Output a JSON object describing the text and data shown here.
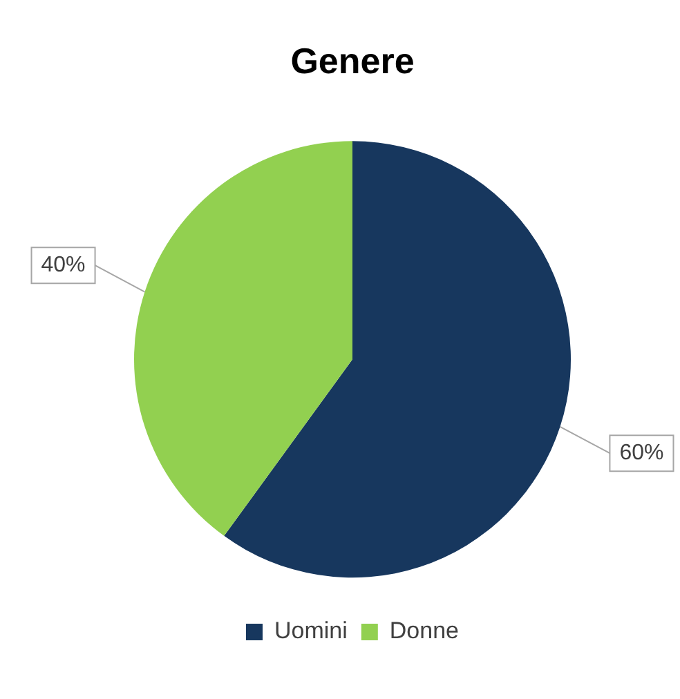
{
  "chart_data": {
    "type": "pie",
    "title": "Genere",
    "categories": [
      "Uomini",
      "Donne"
    ],
    "values": [
      60,
      40
    ],
    "colors": [
      "#17375e",
      "#92d050"
    ],
    "value_labels": [
      "60%",
      "40%"
    ],
    "legend": "bottom"
  }
}
